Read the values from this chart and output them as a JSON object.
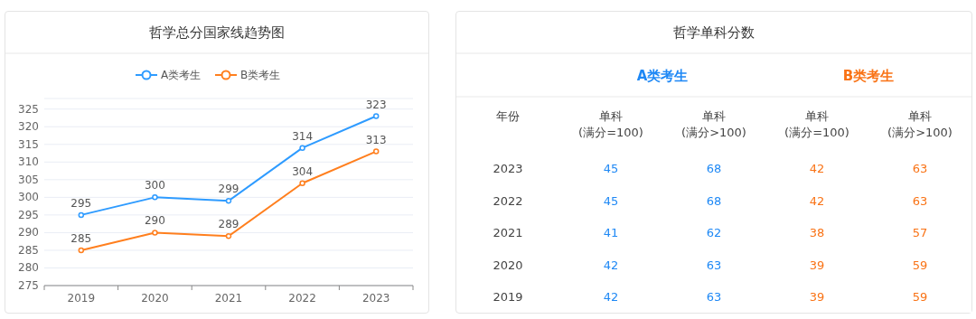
{
  "chart_data": [
    {
      "type": "line",
      "title": "哲学总分国家线趋势图",
      "categories": [
        "2019",
        "2020",
        "2021",
        "2022",
        "2023"
      ],
      "series": [
        {
          "name": "A类考生",
          "color": "#2e9bff",
          "values": [
            295,
            300,
            299,
            314,
            323
          ]
        },
        {
          "name": "B类考生",
          "color": "#ff7f1e",
          "values": [
            285,
            290,
            289,
            304,
            313
          ]
        }
      ],
      "ylim": [
        275,
        328
      ],
      "yticks": [
        275,
        280,
        285,
        290,
        295,
        300,
        305,
        310,
        315,
        320,
        325
      ],
      "grid": "y",
      "legend": "top",
      "marker": "circle",
      "line_style": "solid",
      "data_labels": true
    },
    {
      "type": "heatmap",
      "title": "哲学单科分数",
      "ylabel": "年份",
      "annotations": [
        "A类考生",
        "B类考生"
      ],
      "colors": [
        "#1e88f5",
        "#1e88f5",
        "#f97316",
        "#f97316"
      ],
      "categories": [
        "单科\n(满分=100)",
        "单科\n(满分>100)",
        "单科\n(满分=100)",
        "单科\n(满分>100)"
      ],
      "y_categories": [
        "2023",
        "2022",
        "2021",
        "2020",
        "2019"
      ],
      "data_labels": true,
      "cells": [
        [
          45,
          68,
          42,
          63
        ],
        [
          45,
          68,
          42,
          63
        ],
        [
          41,
          62,
          38,
          57
        ],
        [
          42,
          63,
          39,
          59
        ],
        [
          42,
          63,
          39,
          59
        ]
      ]
    }
  ]
}
